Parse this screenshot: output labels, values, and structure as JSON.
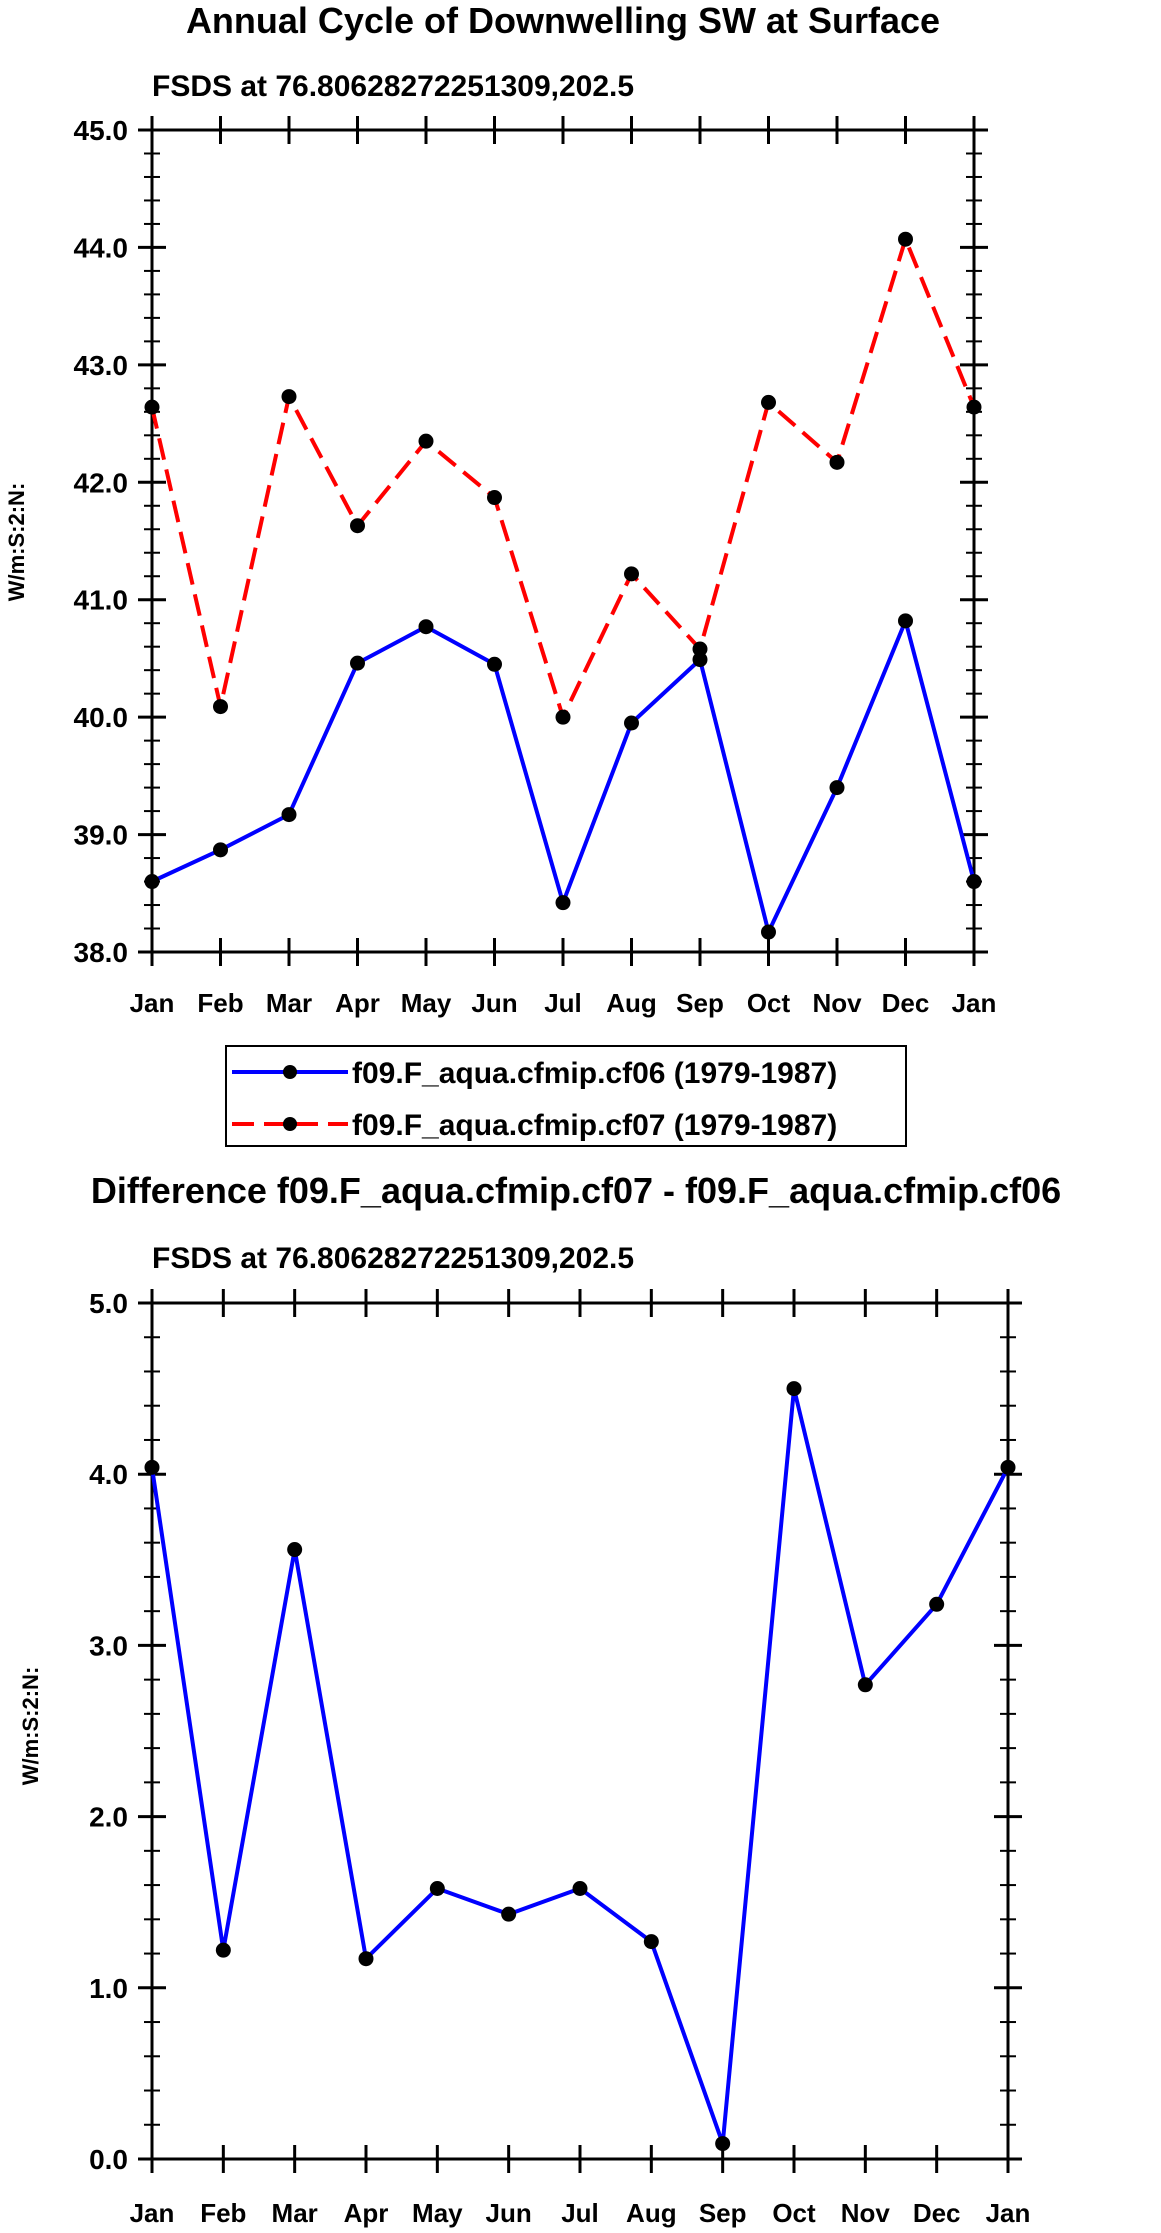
{
  "chart_data": [
    {
      "type": "line",
      "title": "Annual Cycle of Downwelling SW at Surface",
      "subtitle": "FSDS at 76.80628272251309,202.5",
      "xlabel": "",
      "ylabel": "W/m:S:2:N:",
      "categories": [
        "Jan",
        "Feb",
        "Mar",
        "Apr",
        "May",
        "Jun",
        "Jul",
        "Aug",
        "Sep",
        "Oct",
        "Nov",
        "Dec",
        "Jan"
      ],
      "ylim": [
        38.0,
        45.0
      ],
      "yticks": [
        "38.0",
        "39.0",
        "40.0",
        "41.0",
        "42.0",
        "43.0",
        "44.0",
        "45.0"
      ],
      "series": [
        {
          "name": "f09.F_aqua.cfmip.cf06 (1979-1987)",
          "color": "#0000ff",
          "dash": "solid",
          "values": [
            38.6,
            38.87,
            39.17,
            40.46,
            40.77,
            40.45,
            38.42,
            39.95,
            40.49,
            38.17,
            39.4,
            40.82,
            38.6
          ]
        },
        {
          "name": "f09.F_aqua.cfmip.cf07 (1979-1987)",
          "color": "#ff0000",
          "dash": "dashed",
          "values": [
            42.64,
            40.09,
            42.73,
            41.63,
            42.35,
            41.87,
            40.0,
            41.22,
            40.58,
            42.68,
            42.17,
            44.07,
            42.64
          ]
        }
      ],
      "legend": "below"
    },
    {
      "type": "line",
      "title": "Difference f09.F_aqua.cfmip.cf07 - f09.F_aqua.cfmip.cf06",
      "subtitle": "FSDS at 76.80628272251309,202.5",
      "xlabel": "",
      "ylabel": "W/m:S:2:N:",
      "categories": [
        "Jan",
        "Feb",
        "Mar",
        "Apr",
        "May",
        "Jun",
        "Jul",
        "Aug",
        "Sep",
        "Oct",
        "Nov",
        "Dec",
        "Jan"
      ],
      "ylim": [
        0.0,
        5.0
      ],
      "yticks": [
        "0.0",
        "1.0",
        "2.0",
        "3.0",
        "4.0",
        "5.0"
      ],
      "series": [
        {
          "name": "difference",
          "color": "#0000ff",
          "dash": "solid",
          "values": [
            4.04,
            1.22,
            3.56,
            1.17,
            1.58,
            1.43,
            1.58,
            1.27,
            0.09,
            4.5,
            2.77,
            3.24,
            4.04
          ]
        }
      ]
    }
  ]
}
